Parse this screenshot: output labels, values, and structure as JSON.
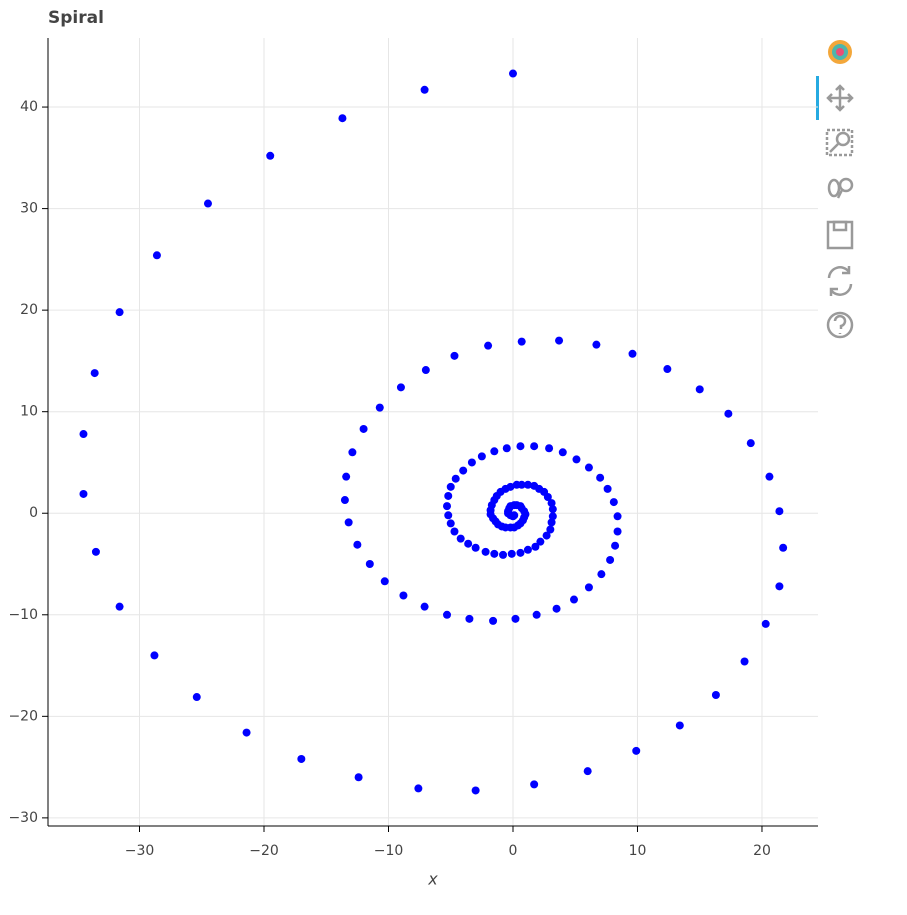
{
  "chart_data": {
    "type": "scatter",
    "title": "Spiral",
    "x_label": "x",
    "color": "#0000ff",
    "grid": true,
    "xlim": [
      -37.35,
      24.5
    ],
    "ylim": [
      -30.8,
      46.8
    ],
    "xticks": [
      {
        "value": -30,
        "label": "−30"
      },
      {
        "value": -20,
        "label": "−20"
      },
      {
        "value": -10,
        "label": "−10"
      },
      0,
      10,
      20
    ],
    "yticks": [
      {
        "value": -30,
        "label": "−30"
      },
      {
        "value": -20,
        "label": "−20"
      },
      {
        "value": -10,
        "label": "−10"
      },
      0,
      10,
      20,
      30,
      40
    ],
    "x": [
      0,
      -7.1,
      -13.7,
      -19.5,
      -24.5,
      -28.6,
      -31.6,
      -33.6,
      -34.5,
      -34.5,
      -33.5,
      -31.6,
      -28.8,
      -25.4,
      -21.4,
      -17.0,
      -12.4,
      -7.6,
      -3.0,
      1.7,
      6.0,
      9.9,
      13.4,
      16.3,
      18.6,
      20.3,
      21.4,
      21.7,
      21.4,
      20.6,
      19.1,
      17.3,
      15.0,
      12.4,
      9.6,
      6.7,
      3.7,
      0.7,
      -2.0,
      -4.7,
      -7.0,
      -9.0,
      -10.7,
      -12.0,
      -12.9,
      -13.4,
      -13.5,
      -13.2,
      -12.5,
      -11.5,
      -10.3,
      -8.8,
      -7.1,
      -5.3,
      -3.5,
      -1.6,
      0.2,
      1.9,
      3.5,
      4.9,
      6.1,
      7.1,
      7.8,
      8.2,
      8.4,
      8.4,
      8.1,
      7.6,
      7.0,
      6.1,
      5.1,
      4.0,
      2.9,
      1.7,
      0.6,
      -0.5,
      -1.5,
      -2.5,
      -3.3,
      -4.0,
      -4.6,
      -5.0,
      -5.2,
      -5.3,
      -5.2,
      -5.0,
      -4.7,
      -4.2,
      -3.6,
      -3.0,
      -2.2,
      -1.5,
      -0.8,
      -0.1,
      0.6,
      1.2,
      1.8,
      2.2,
      2.7,
      3.0,
      3.1,
      3.2,
      3.2,
      3.1,
      2.8,
      2.5,
      2.1,
      1.7,
      1.2,
      0.7,
      0.3,
      -0.2,
      -0.6,
      -1.0,
      -1.3,
      -1.5,
      -1.7,
      -1.8,
      -1.8,
      -1.6,
      -1.4,
      -1.2,
      -0.9,
      -0.6,
      -0.2,
      0.1,
      0.4,
      0.6,
      0.8,
      0.9,
      1.0,
      0.9,
      0.7,
      0.6,
      0.3,
      0.1,
      -0.2,
      -0.3,
      -0.4,
      -0.4,
      -0.2,
      0,
      0.1
    ],
    "y": [
      43.3,
      41.7,
      38.9,
      35.2,
      30.5,
      25.4,
      19.8,
      13.8,
      7.8,
      1.9,
      -3.8,
      -9.2,
      -14.0,
      -18.1,
      -21.6,
      -24.2,
      -26.0,
      -27.1,
      -27.3,
      -26.7,
      -25.4,
      -23.4,
      -20.9,
      -17.9,
      -14.6,
      -10.9,
      -7.2,
      -3.4,
      0.2,
      3.6,
      6.9,
      9.8,
      12.2,
      14.2,
      15.7,
      16.6,
      17.0,
      16.9,
      16.5,
      15.5,
      14.1,
      12.4,
      10.4,
      8.3,
      6.0,
      3.6,
      1.3,
      -0.9,
      -3.1,
      -5.0,
      -6.7,
      -8.1,
      -9.2,
      -10.0,
      -10.4,
      -10.6,
      -10.4,
      -10.0,
      -9.4,
      -8.5,
      -7.3,
      -6.0,
      -4.6,
      -3.2,
      -1.8,
      -0.3,
      1.1,
      2.4,
      3.5,
      4.5,
      5.3,
      6.0,
      6.4,
      6.6,
      6.6,
      6.4,
      6.1,
      5.6,
      5.0,
      4.2,
      3.4,
      2.6,
      1.7,
      0.7,
      -0.2,
      -1.0,
      -1.8,
      -2.5,
      -3.0,
      -3.4,
      -3.8,
      -4.0,
      -4.1,
      -4.0,
      -3.9,
      -3.6,
      -3.3,
      -2.8,
      -2.2,
      -1.6,
      -0.9,
      -0.3,
      0.4,
      1.0,
      1.6,
      2.1,
      2.4,
      2.7,
      2.8,
      2.8,
      2.8,
      2.6,
      2.4,
      2.1,
      1.7,
      1.3,
      0.8,
      0.3,
      -0.1,
      -0.5,
      -0.8,
      -1.1,
      -1.3,
      -1.4,
      -1.4,
      -1.4,
      -1.2,
      -1.0,
      -0.7,
      -0.4,
      -0.1,
      0.2,
      0.5,
      0.7,
      0.8,
      0.8,
      0.7,
      0.5,
      0.2,
      0,
      -0.2,
      -0.3,
      -0.2
    ]
  }
}
